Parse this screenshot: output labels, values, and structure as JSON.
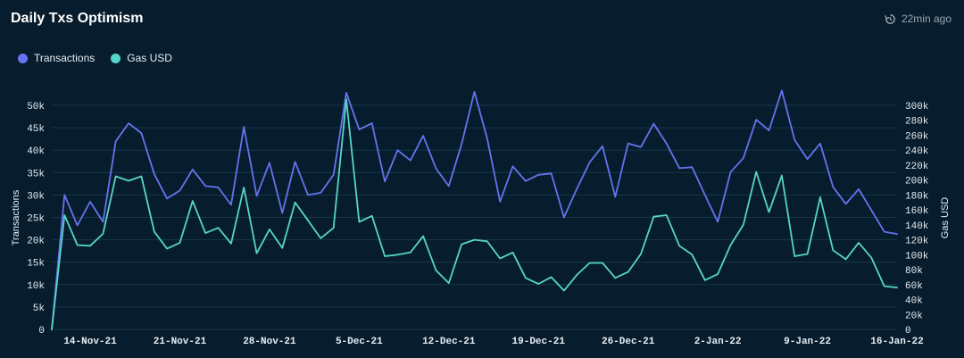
{
  "header": {
    "title": "Daily Txs Optimism",
    "updated": "22min ago",
    "updated_icon": "clock-refresh-icon"
  },
  "chart_data": {
    "type": "line",
    "title": "Daily Txs Optimism",
    "xlabel": "",
    "ylabel": "Transactions",
    "y2label": "Gas USD",
    "ylim": [
      0,
      50000
    ],
    "y2lim": [
      0,
      300000
    ],
    "y_ticks": [
      "0",
      "5k",
      "10k",
      "15k",
      "20k",
      "25k",
      "30k",
      "35k",
      "40k",
      "45k",
      "50k"
    ],
    "y2_ticks": [
      "0",
      "20k",
      "40k",
      "60k",
      "80k",
      "100k",
      "120k",
      "140k",
      "160k",
      "180k",
      "200k",
      "220k",
      "240k",
      "260k",
      "280k",
      "300k"
    ],
    "x_start": "2021-11-11",
    "x_ticks": [
      {
        "label": "14-Nov-21",
        "day": 3
      },
      {
        "label": "21-Nov-21",
        "day": 10
      },
      {
        "label": "28-Nov-21",
        "day": 17
      },
      {
        "label": "5-Dec-21",
        "day": 24
      },
      {
        "label": "12-Dec-21",
        "day": 31
      },
      {
        "label": "19-Dec-21",
        "day": 38
      },
      {
        "label": "26-Dec-21",
        "day": 45
      },
      {
        "label": "2-Jan-22",
        "day": 52
      },
      {
        "label": "9-Jan-22",
        "day": 59
      },
      {
        "label": "16-Jan-22",
        "day": 66
      }
    ],
    "legend": [
      {
        "name": "Transactions",
        "color": "#6474f0"
      },
      {
        "name": "Gas USD",
        "color": "#55d6c8"
      }
    ],
    "series": [
      {
        "name": "Transactions",
        "axis": "left",
        "color": "#6474f0",
        "values": [
          0,
          30000,
          23200,
          28500,
          24000,
          42000,
          46000,
          43800,
          34700,
          29200,
          31000,
          35700,
          32000,
          31700,
          27800,
          45200,
          29800,
          37200,
          26000,
          37400,
          30000,
          30500,
          34500,
          52800,
          44600,
          46000,
          33000,
          40000,
          37700,
          43200,
          35900,
          32000,
          41400,
          53000,
          42600,
          28500,
          36400,
          33100,
          34500,
          34800,
          25000,
          31400,
          37300,
          40900,
          29600,
          41500,
          40700,
          45900,
          41500,
          36000,
          36200,
          30000,
          24000,
          35100,
          38200,
          46800,
          44400,
          53300,
          42300,
          38000,
          41500,
          31800,
          28000,
          31300,
          26600,
          21800,
          21300
        ]
      },
      {
        "name": "Gas USD",
        "axis": "right",
        "color": "#55d6c8",
        "values": [
          0,
          153000,
          113000,
          112000,
          128000,
          205000,
          199000,
          205000,
          131000,
          108000,
          116000,
          172000,
          129000,
          136000,
          115000,
          190000,
          102000,
          134000,
          109000,
          170000,
          146000,
          122000,
          136000,
          308000,
          144000,
          152000,
          98000,
          100000,
          103000,
          125000,
          79000,
          62000,
          114000,
          120000,
          118000,
          95000,
          103000,
          69000,
          61000,
          70000,
          52000,
          73000,
          89000,
          89000,
          69000,
          77000,
          101000,
          151000,
          153000,
          112000,
          100000,
          66000,
          74000,
          113000,
          140000,
          211000,
          157000,
          206000,
          98000,
          101000,
          177000,
          106000,
          94000,
          116000,
          96000,
          58000,
          56000
        ]
      }
    ]
  }
}
